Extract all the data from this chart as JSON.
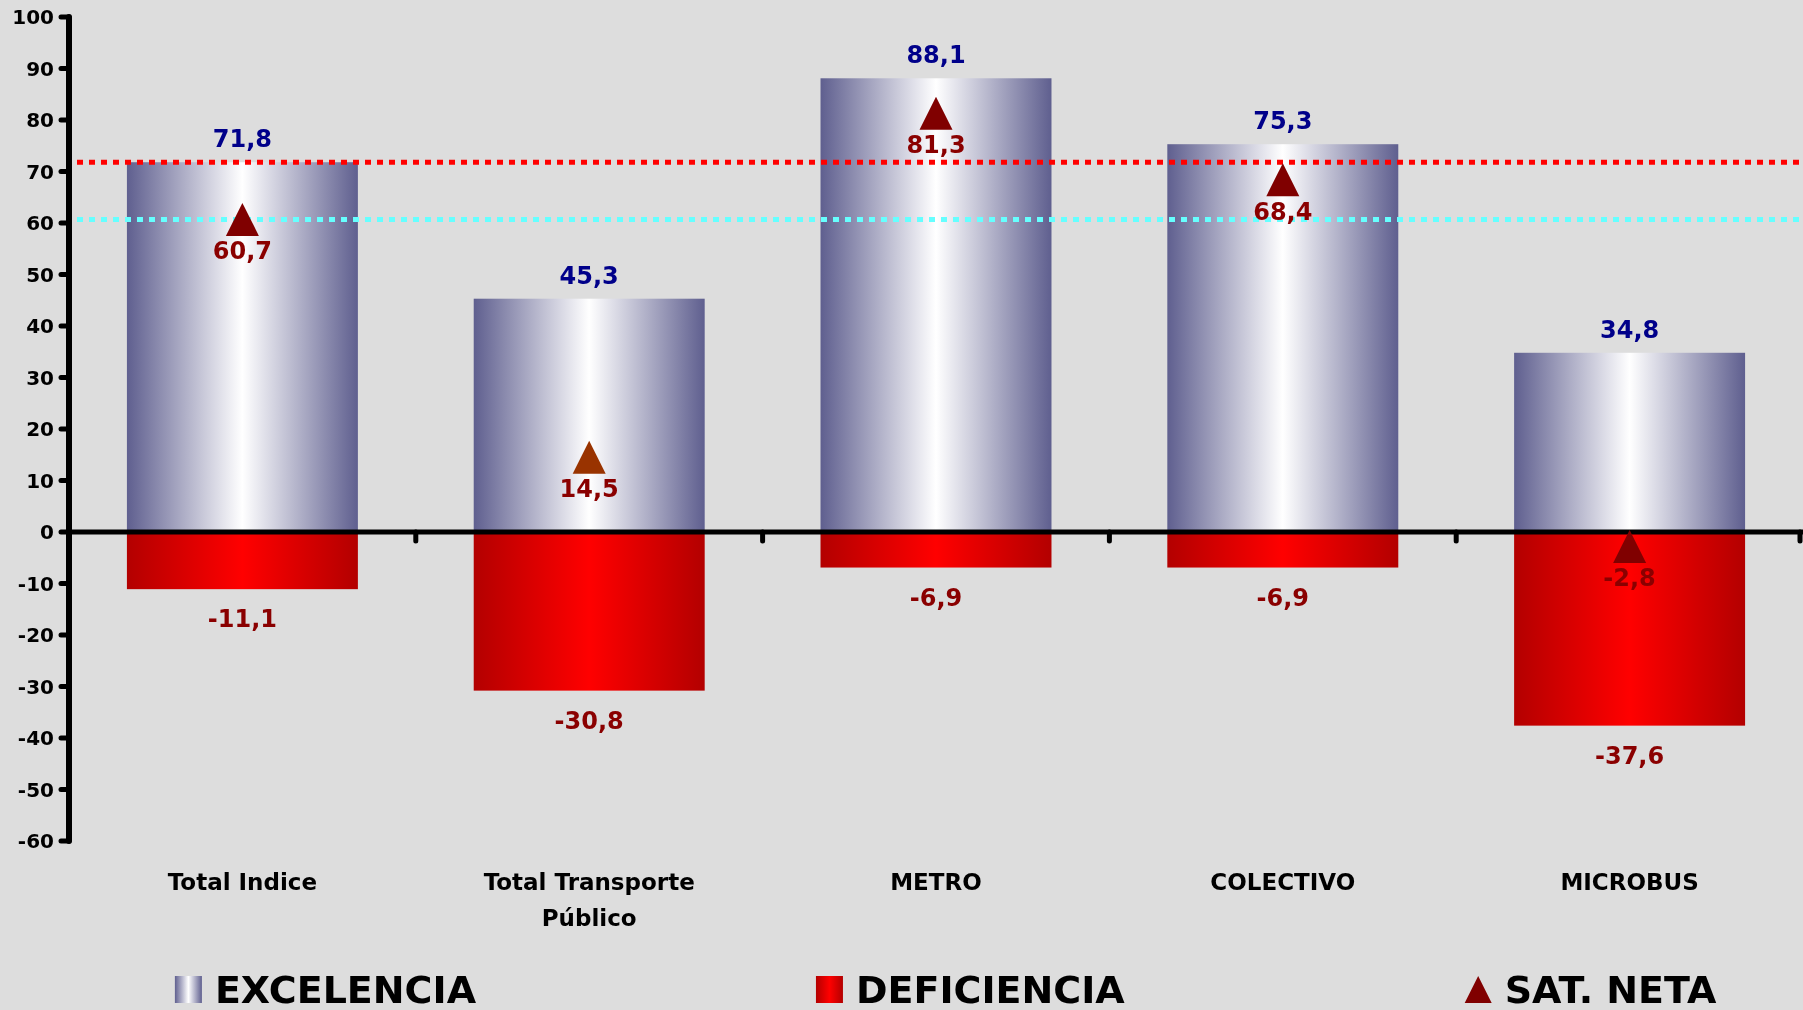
{
  "chart_data": {
    "type": "bar",
    "categories": [
      "Total Indice",
      "Total Transporte Público",
      "METRO",
      "COLECTIVO",
      "MICROBUS"
    ],
    "stacked": true,
    "series": [
      {
        "name": "EXCELENCIA",
        "color": "#8888cc",
        "values": [
          71.8,
          45.3,
          88.1,
          75.3,
          34.8
        ],
        "value_labels": [
          "71,8",
          "45,3",
          "88,1",
          "75,3",
          "34,8"
        ]
      },
      {
        "name": "DEFICIENCIA",
        "color": "#ff0000",
        "values": [
          -11.1,
          -30.8,
          -6.9,
          -6.9,
          -37.6
        ],
        "value_labels": [
          "-11,1",
          "-30,8",
          "-6,9",
          "-6,9",
          "-37,6"
        ]
      },
      {
        "name": "SAT. NETA",
        "type": "scatter",
        "marker": "triangle",
        "color": "#800000",
        "colors": [
          "#800000",
          "#993300",
          "#800000",
          "#800000",
          "#800000"
        ],
        "values": [
          60.7,
          14.5,
          81.3,
          68.4,
          -2.8
        ],
        "value_labels": [
          "60,7",
          "14,5",
          "81,3",
          "68,4",
          "-2,8"
        ]
      }
    ],
    "ylim": [
      -60,
      100
    ],
    "yticks": [
      -60,
      -50,
      -40,
      -30,
      -20,
      -10,
      0,
      10,
      20,
      30,
      40,
      50,
      60,
      70,
      80,
      90,
      100
    ],
    "legend": "bottom",
    "ref_lines": [
      {
        "axis": "y",
        "value": 71.8,
        "color": "#ff0000",
        "line_style": "dotted"
      },
      {
        "axis": "y",
        "value": 60.7,
        "color": "#66ffff",
        "line_style": "dotted"
      }
    ]
  }
}
